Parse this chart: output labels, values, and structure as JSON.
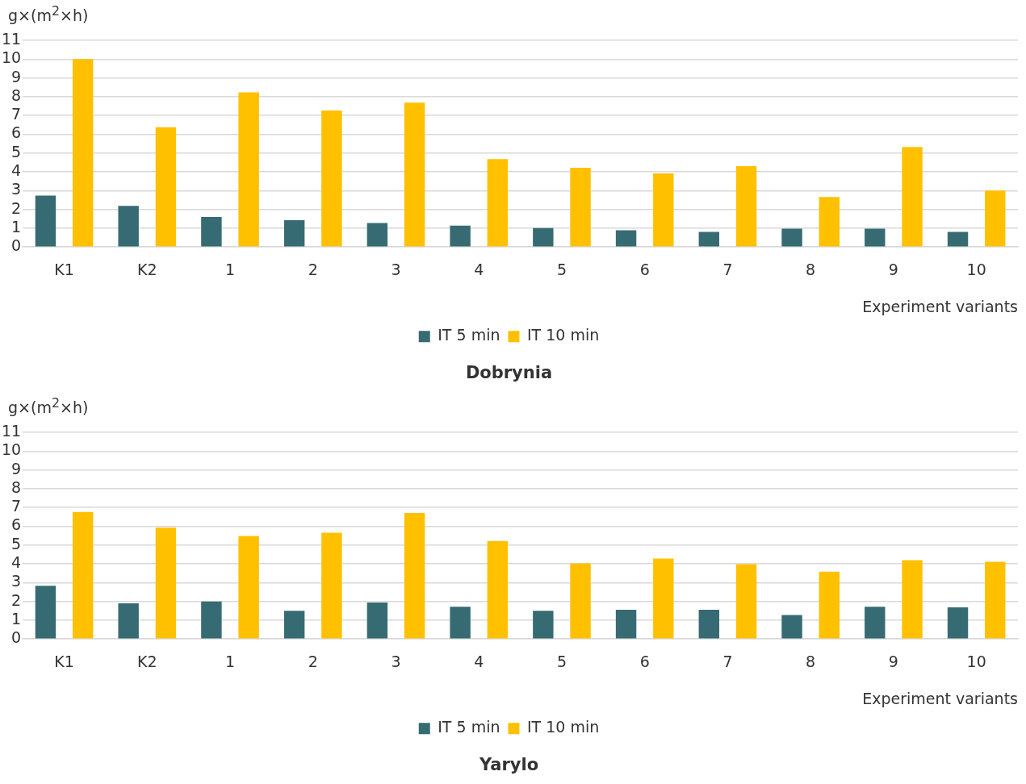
{
  "chart_data": [
    {
      "type": "bar",
      "title": "Dobrynia",
      "ylabel": "g×(m$^{2}$×h)",
      "xlabel": "Experiment variants",
      "categories": [
        "K1",
        "K2",
        "1",
        "2",
        "3",
        "4",
        "5",
        "6",
        "7",
        "8",
        "9",
        "10"
      ],
      "series": [
        {
          "name": "IT 5 min",
          "color": "#376b73",
          "values": [
            2.74,
            2.19,
            1.6,
            1.43,
            1.27,
            1.14,
            1.01,
            0.89,
            0.8,
            0.97,
            0.97,
            0.8
          ]
        },
        {
          "name": "IT 10 min",
          "color": "#ffc000",
          "values": [
            10.0,
            6.37,
            8.23,
            7.26,
            7.68,
            4.68,
            4.22,
            3.92,
            4.3,
            2.66,
            5.32,
            3.0
          ]
        }
      ],
      "ylim": [
        0,
        11
      ],
      "yticks": [
        0,
        1,
        2,
        3,
        4,
        5,
        6,
        7,
        8,
        9,
        10,
        11
      ],
      "grid": "y",
      "legend": "bottom"
    },
    {
      "type": "bar",
      "title": "Yarylo",
      "ylabel": "g×(m$^{2}$×h)",
      "xlabel": "Experiment variants",
      "categories": [
        "K1",
        "K2",
        "1",
        "2",
        "3",
        "4",
        "5",
        "6",
        "7",
        "8",
        "9",
        "10"
      ],
      "series": [
        {
          "name": "IT 5 min",
          "color": "#376b73",
          "values": [
            2.83,
            1.9,
            1.99,
            1.5,
            1.94,
            1.72,
            1.5,
            1.55,
            1.55,
            1.28,
            1.72,
            1.68
          ]
        },
        {
          "name": "IT 10 min",
          "color": "#ffc000",
          "values": [
            6.76,
            5.92,
            5.48,
            5.65,
            6.71,
            5.21,
            4.02,
            4.28,
            3.98,
            3.58,
            4.2,
            4.11
          ]
        }
      ],
      "ylim": [
        0,
        11
      ],
      "yticks": [
        0,
        1,
        2,
        3,
        4,
        5,
        6,
        7,
        8,
        9,
        10,
        11
      ],
      "grid": "y",
      "legend": "bottom"
    }
  ]
}
